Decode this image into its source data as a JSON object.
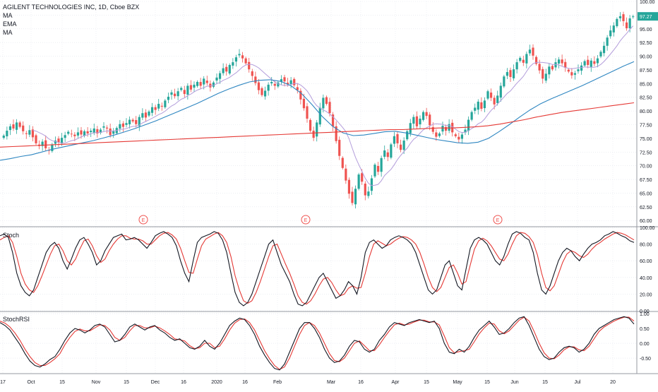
{
  "legend": {
    "symbol_line": "AGILENT TECHNOLOGIES INC, 1D, Cboe BZX",
    "ma1": "MA",
    "ema": "EMA",
    "ma2": "MA"
  },
  "stoch_title": "Stoch",
  "stochrsi_title": "StochRSI",
  "last_price_label": "97.27",
  "colors": {
    "up": "#26a69a",
    "down": "#ef5350",
    "ema_blue": "#2e86c1",
    "ma_red": "#e53935",
    "ma_fast": "#b39ddb",
    "k_line": "#131722",
    "d_line": "#e53935",
    "grid": "#e0e3eb"
  },
  "chart_data": [
    {
      "type": "candlestick",
      "title": "AGILENT TECHNOLOGIES INC, 1D, Cboe BZX",
      "ylim": [
        59,
        100
      ],
      "y_ticks": [
        "100.00",
        "97.50",
        "95.00",
        "92.50",
        "90.00",
        "87.50",
        "85.00",
        "82.50",
        "80.00",
        "77.50",
        "75.00",
        "72.50",
        "70.00",
        "67.50",
        "65.00",
        "62.50",
        "60.00"
      ],
      "x_ticks": [
        "17",
        "Oct",
        "15",
        "Nov",
        "15",
        "Dec",
        "16",
        "2020",
        "16",
        "Feb",
        "Mar",
        "16",
        "Apr",
        "15",
        "May",
        "15",
        "Jun",
        "15",
        "Jul",
        "20"
      ],
      "close": [
        75.5,
        76.4,
        77.2,
        76.8,
        77.9,
        77.1,
        76.3,
        75.8,
        76.5,
        75.2,
        74.1,
        73.6,
        74.4,
        73.2,
        72.8,
        73.9,
        74.6,
        74.3,
        75.1,
        75.6,
        76.2,
        75.8,
        75.4,
        76.1,
        75.7,
        76.3,
        75.9,
        76.4,
        76.8,
        75.9,
        76.6,
        77.2,
        76.8,
        75.6,
        76.3,
        76.9,
        77.6,
        77.1,
        77.8,
        78.4,
        78.1,
        77.6,
        78.9,
        79.6,
        78.8,
        79.9,
        80.7,
        80.2,
        81.3,
        80.8,
        81.9,
        82.6,
        83.4,
        82.7,
        83.6,
        84.2,
        83.1,
        84.6,
        83.9,
        84.8,
        85.3,
        84.6,
        85.9,
        85.1,
        84.3,
        85.2,
        86.1,
        86.9,
        87.8,
        87.2,
        88.4,
        88.9,
        89.8,
        90.4,
        89.6,
        88.7,
        87.6,
        86.4,
        85.1,
        83.8,
        82.9,
        83.7,
        84.8,
        85.3,
        84.6,
        85.2,
        85.8,
        85.4,
        84.9,
        85.6,
        84.7,
        83.8,
        82.1,
        80.5,
        78.6,
        76.4,
        75.1,
        77.9,
        80.6,
        82.4,
        81.3,
        79.6,
        77.2,
        74.5,
        71.8,
        69.6,
        67.3,
        64.9,
        63.2,
        65.8,
        68.4,
        67.1,
        64.6,
        65.3,
        67.7,
        70.2,
        68.9,
        71.4,
        72.8,
        71.6,
        73.9,
        75.4,
        74.1,
        72.9,
        74.6,
        76.3,
        77.8,
        78.9,
        77.2,
        78.6,
        79.8,
        79.1,
        77.4,
        76.2,
        75.3,
        75.9,
        77.3,
        76.4,
        77.6,
        76.1,
        75.4,
        74.8,
        75.7,
        76.6,
        78.4,
        79.8,
        80.6,
        81.7,
        80.4,
        81.9,
        83.6,
        82.4,
        81.2,
        82.8,
        84.6,
        86.3,
        87.1,
        86.2,
        87.6,
        88.9,
        89.7,
        88.8,
        90.4,
        91.2,
        90.1,
        88.6,
        87.4,
        85.9,
        86.8,
        88.1,
        87.6,
        88.9,
        89.4,
        88.7,
        87.9,
        87.2,
        86.5,
        86.9,
        87.6,
        88.3,
        89.1,
        88.4,
        89.2,
        88.6,
        89.6,
        90.8,
        91.9,
        93.4,
        94.7,
        95.6,
        96.8,
        97.3,
        96.4,
        95.1,
        96.9,
        97.27
      ],
      "ema_values": [
        71.0,
        71.3,
        71.7,
        72.0,
        72.5,
        73.0,
        73.4,
        73.8,
        74.2,
        74.6,
        75.1,
        75.6,
        76.2,
        76.8,
        77.5,
        78.2,
        79.0,
        79.8,
        80.6,
        81.4,
        82.3,
        83.2,
        84.0,
        84.7,
        85.3,
        85.6,
        85.7,
        85.4,
        84.6,
        83.2,
        81.2,
        79.0,
        77.2,
        76.0,
        75.5,
        75.6,
        75.9,
        76.2,
        76.3,
        76.0,
        75.6,
        75.2,
        74.8,
        74.5,
        74.2,
        74.1,
        74.3,
        75.0,
        76.2,
        77.5,
        78.9,
        80.2,
        81.3,
        82.2,
        83.0,
        83.8,
        84.6,
        85.5,
        86.4,
        87.3,
        88.2,
        89.0
      ],
      "ma_slow_values": [
        73.4,
        73.5,
        73.6,
        73.7,
        73.8,
        73.9,
        74.0,
        74.1,
        74.2,
        74.3,
        74.4,
        74.5,
        74.6,
        74.7,
        74.8,
        74.9,
        75.0,
        75.1,
        75.2,
        75.3,
        75.4,
        75.5,
        75.6,
        75.7,
        75.8,
        75.9,
        76.0,
        76.1,
        76.2,
        76.3,
        76.4,
        76.5,
        76.6,
        76.6,
        76.7,
        76.8,
        76.9,
        76.9,
        77.0,
        77.1,
        77.3,
        77.6,
        78.0,
        78.4,
        78.9,
        79.3,
        79.7,
        80.0,
        80.3,
        80.6,
        80.9,
        81.2,
        81.5
      ],
      "earnings_markers": [
        "E",
        "E",
        "E"
      ]
    },
    {
      "type": "line",
      "title": "Stoch",
      "ylim": [
        0,
        100
      ],
      "y_ticks": [
        "100.00",
        "80.00",
        "60.00",
        "40.00",
        "20.00",
        "0.00"
      ],
      "series": [
        {
          "name": "",
          "role": "k",
          "values": [
            90,
            92,
            88,
            70,
            45,
            30,
            22,
            18,
            25,
            40,
            55,
            70,
            78,
            82,
            75,
            60,
            50,
            62,
            75,
            85,
            88,
            80,
            70,
            55,
            60,
            72,
            80,
            88,
            90,
            92,
            85,
            86,
            88,
            85,
            80,
            75,
            82,
            90,
            93,
            95,
            92,
            88,
            78,
            60,
            45,
            35,
            60,
            82,
            88,
            90,
            92,
            95,
            93,
            85,
            70,
            45,
            22,
            10,
            6,
            10,
            20,
            35,
            50,
            65,
            80,
            85,
            70,
            55,
            45,
            35,
            20,
            8,
            6,
            10,
            20,
            30,
            40,
            45,
            35,
            25,
            15,
            18,
            25,
            35,
            30,
            20,
            40,
            70,
            82,
            85,
            80,
            75,
            78,
            85,
            88,
            90,
            88,
            85,
            80,
            70,
            55,
            40,
            25,
            20,
            25,
            40,
            55,
            60,
            45,
            30,
            25,
            50,
            75,
            85,
            88,
            85,
            80,
            70,
            60,
            55,
            65,
            80,
            92,
            95,
            93,
            88,
            85,
            70,
            45,
            25,
            20,
            30,
            45,
            60,
            70,
            75,
            72,
            65,
            60,
            68,
            75,
            80,
            82,
            85,
            90,
            92,
            95,
            93,
            90,
            88,
            84,
            82
          ]
        },
        {
          "name": "",
          "role": "d",
          "values": [
            85,
            88,
            90,
            82,
            65,
            45,
            32,
            25,
            22,
            30,
            42,
            55,
            68,
            78,
            80,
            72,
            60,
            55,
            62,
            74,
            84,
            86,
            78,
            66,
            58,
            62,
            72,
            80,
            86,
            90,
            90,
            87,
            86,
            86,
            84,
            80,
            80,
            85,
            90,
            93,
            94,
            91,
            86,
            75,
            60,
            46,
            45,
            62,
            78,
            86,
            89,
            92,
            94,
            90,
            82,
            65,
            42,
            25,
            12,
            9,
            12,
            22,
            35,
            50,
            65,
            78,
            80,
            68,
            56,
            45,
            32,
            18,
            10,
            8,
            12,
            20,
            30,
            38,
            40,
            34,
            25,
            18,
            20,
            27,
            30,
            27,
            28,
            45,
            65,
            80,
            84,
            81,
            78,
            80,
            84,
            87,
            89,
            88,
            85,
            80,
            70,
            56,
            40,
            28,
            23,
            28,
            40,
            52,
            55,
            45,
            32,
            35,
            55,
            74,
            84,
            87,
            84,
            78,
            70,
            62,
            60,
            68,
            80,
            90,
            94,
            93,
            89,
            82,
            67,
            45,
            28,
            24,
            30,
            44,
            58,
            68,
            72,
            70,
            66,
            64,
            68,
            74,
            79,
            82,
            86,
            89,
            92,
            94,
            93,
            91,
            88,
            85
          ]
        }
      ]
    },
    {
      "type": "line",
      "title": "StochRSI",
      "ylim": [
        -1,
        1.05
      ],
      "y_ticks": [
        "1.00",
        "0.50",
        "0.00",
        "-0.50"
      ],
      "series": [
        {
          "name": "",
          "role": "k",
          "values": [
            0.7,
            0.6,
            0.45,
            0.2,
            -0.05,
            -0.35,
            -0.6,
            -0.75,
            -0.8,
            -0.7,
            -0.55,
            -0.45,
            -0.2,
            0.1,
            0.35,
            0.5,
            0.45,
            0.35,
            0.45,
            0.6,
            0.65,
            0.55,
            0.3,
            0.05,
            0.1,
            0.3,
            0.55,
            0.65,
            0.55,
            0.45,
            0.55,
            0.6,
            0.45,
            0.35,
            0.2,
            0.1,
            0.15,
            0.0,
            -0.15,
            -0.2,
            -0.1,
            0.1,
            -0.1,
            -0.2,
            0.0,
            0.3,
            0.6,
            0.75,
            0.85,
            0.8,
            0.6,
            0.3,
            -0.1,
            -0.4,
            -0.65,
            -0.85,
            -0.9,
            -0.7,
            -0.3,
            0.1,
            0.5,
            0.7,
            0.7,
            0.5,
            0.2,
            -0.2,
            -0.5,
            -0.65,
            -0.6,
            -0.4,
            -0.1,
            0.1,
            0.05,
            -0.2,
            -0.3,
            -0.2,
            0.1,
            0.3,
            0.55,
            0.7,
            0.65,
            0.6,
            0.7,
            0.75,
            0.8,
            0.75,
            0.7,
            0.75,
            0.5,
            0.0,
            -0.3,
            -0.35,
            -0.2,
            -0.3,
            -0.1,
            0.2,
            0.45,
            0.6,
            0.75,
            0.55,
            0.3,
            0.35,
            0.5,
            0.7,
            0.85,
            0.9,
            0.6,
            0.2,
            -0.2,
            -0.45,
            -0.55,
            -0.5,
            -0.3,
            -0.15,
            -0.1,
            -0.15,
            -0.3,
            -0.2,
            0.0,
            0.3,
            0.5,
            0.6,
            0.7,
            0.8,
            0.85,
            0.9,
            0.85,
            0.65
          ]
        },
        {
          "name": "",
          "role": "d",
          "values": [
            0.75,
            0.68,
            0.55,
            0.35,
            0.1,
            -0.2,
            -0.45,
            -0.65,
            -0.75,
            -0.75,
            -0.65,
            -0.52,
            -0.35,
            -0.05,
            0.2,
            0.4,
            0.48,
            0.42,
            0.42,
            0.52,
            0.62,
            0.6,
            0.45,
            0.2,
            0.1,
            0.2,
            0.42,
            0.6,
            0.6,
            0.52,
            0.52,
            0.58,
            0.52,
            0.42,
            0.3,
            0.15,
            0.12,
            0.08,
            -0.08,
            -0.18,
            -0.15,
            0.0,
            0.0,
            -0.15,
            -0.1,
            0.15,
            0.45,
            0.68,
            0.8,
            0.82,
            0.7,
            0.45,
            0.1,
            -0.25,
            -0.52,
            -0.75,
            -0.88,
            -0.8,
            -0.5,
            -0.1,
            0.3,
            0.6,
            0.7,
            0.6,
            0.35,
            0.0,
            -0.35,
            -0.58,
            -0.62,
            -0.5,
            -0.25,
            0.0,
            0.08,
            -0.08,
            -0.25,
            -0.25,
            -0.05,
            0.2,
            0.42,
            0.62,
            0.68,
            0.62,
            0.65,
            0.72,
            0.78,
            0.78,
            0.72,
            0.72,
            0.62,
            0.25,
            -0.15,
            -0.32,
            -0.28,
            -0.25,
            -0.2,
            0.05,
            0.32,
            0.52,
            0.68,
            0.65,
            0.42,
            0.32,
            0.42,
            0.6,
            0.78,
            0.88,
            0.75,
            0.4,
            0.0,
            -0.32,
            -0.5,
            -0.52,
            -0.4,
            -0.22,
            -0.12,
            -0.12,
            -0.22,
            -0.25,
            -0.1,
            0.15,
            0.4,
            0.55,
            0.65,
            0.75,
            0.82,
            0.88,
            0.88,
            0.75
          ]
        }
      ]
    }
  ]
}
